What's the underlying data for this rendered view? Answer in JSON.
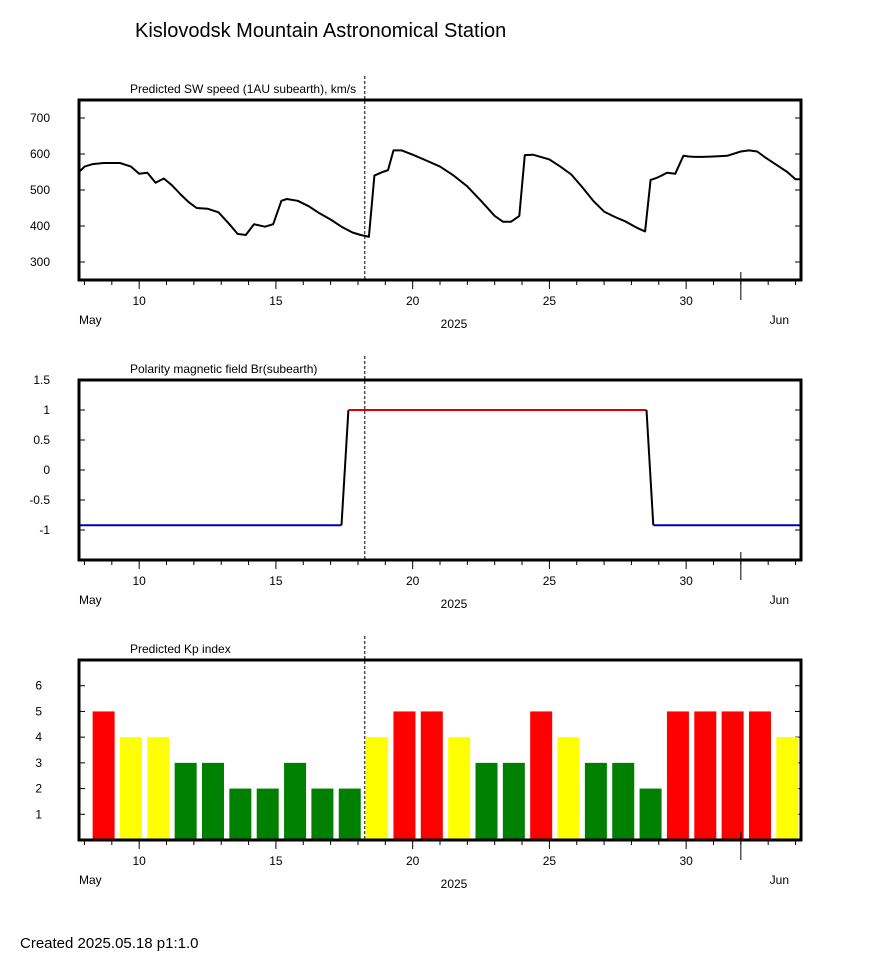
{
  "title": "Kislovodsk Mountain Astronomical Station",
  "footer": "Created  2025.05.18    p1:1.0",
  "x_axis": {
    "year_label": "2025",
    "month_start": "May",
    "month_end": "Jun",
    "ticks": [
      "10",
      "15",
      "20",
      "25",
      "30"
    ]
  },
  "chart_data": [
    {
      "type": "line",
      "title": "Predicted SW speed (1AU subearth), km/s",
      "xlabel": "2025",
      "ylim": [
        250,
        750
      ],
      "yticks": [
        "300",
        "400",
        "500",
        "600",
        "700"
      ],
      "now_marker_day": 18.25,
      "series": [
        {
          "color": "#000000",
          "x": [
            7.8,
            8.0,
            8.3,
            8.7,
            9.3,
            9.7,
            10.0,
            10.3,
            10.6,
            10.9,
            11.2,
            11.5,
            11.8,
            12.1,
            12.5,
            12.9,
            13.3,
            13.6,
            13.9,
            14.2,
            14.6,
            14.9,
            15.2,
            15.4,
            15.8,
            16.2,
            16.6,
            17.0,
            17.4,
            17.8,
            18.1,
            18.3,
            18.4,
            18.6,
            18.9,
            19.1,
            19.3,
            19.6,
            20.0,
            20.5,
            21.0,
            21.5,
            22.0,
            22.5,
            23.0,
            23.3,
            23.6,
            23.9,
            24.1,
            24.4,
            25.0,
            25.4,
            25.8,
            26.2,
            26.6,
            27.0,
            27.4,
            27.8,
            28.2,
            28.5,
            28.7,
            28.9,
            29.1,
            29.3,
            29.6,
            29.9,
            30.1,
            30.3,
            30.6,
            31.0,
            31.5,
            32.0,
            32.3,
            32.6,
            32.9,
            33.3,
            33.7,
            34.0,
            34.2
          ],
          "values": [
            550,
            565,
            572,
            575,
            575,
            565,
            545,
            548,
            520,
            532,
            513,
            489,
            467,
            450,
            448,
            438,
            405,
            378,
            375,
            405,
            398,
            405,
            470,
            475,
            470,
            455,
            435,
            418,
            398,
            382,
            375,
            372,
            370,
            540,
            550,
            555,
            610,
            610,
            598,
            582,
            565,
            540,
            510,
            470,
            428,
            412,
            412,
            428,
            597,
            598,
            585,
            565,
            543,
            508,
            470,
            440,
            425,
            412,
            395,
            385,
            528,
            533,
            540,
            548,
            545,
            595,
            593,
            592,
            592,
            593,
            595,
            607,
            610,
            607,
            590,
            570,
            550,
            530,
            530
          ]
        }
      ]
    },
    {
      "type": "line",
      "title": "Polarity magnetic field  Br(subearth)",
      "xlabel": "2025",
      "ylim": [
        -1.5,
        1.5
      ],
      "yticks": [
        "1.5",
        "1",
        "0.5",
        "0",
        "-0.5",
        "-1"
      ],
      "now_marker_day": 18.25,
      "series": [
        {
          "color": "#0000b0",
          "x": [
            7.8,
            17.4
          ],
          "values": [
            -0.92,
            -0.92
          ]
        },
        {
          "color": "#000000",
          "x": [
            17.4,
            17.65
          ],
          "values": [
            -0.92,
            1.0
          ]
        },
        {
          "color": "#dd0000",
          "x": [
            17.65,
            28.55
          ],
          "values": [
            1.0,
            1.0
          ]
        },
        {
          "color": "#000000",
          "x": [
            28.55,
            28.8
          ],
          "values": [
            1.0,
            -0.92
          ]
        },
        {
          "color": "#0000b0",
          "x": [
            28.8,
            34.2
          ],
          "values": [
            -0.92,
            -0.92
          ]
        }
      ]
    },
    {
      "type": "bar",
      "title": "Predicted Kp index",
      "xlabel": "2025",
      "ylim": [
        0,
        7
      ],
      "yticks": [
        "1",
        "2",
        "3",
        "4",
        "5",
        "6"
      ],
      "now_marker_day": 18.25,
      "x": [
        8.7,
        9.7,
        10.7,
        11.7,
        12.7,
        13.7,
        14.7,
        15.7,
        16.7,
        17.7,
        18.7,
        19.7,
        20.7,
        21.7,
        22.7,
        23.7,
        24.7,
        25.7,
        26.7,
        27.7,
        28.7,
        29.7,
        30.7,
        31.7,
        32.7,
        33.7
      ],
      "values": [
        5,
        4,
        4,
        3,
        3,
        2,
        2,
        3,
        2,
        2,
        4,
        5,
        5,
        4,
        3,
        3,
        5,
        4,
        3,
        3,
        2,
        5,
        5,
        5,
        5,
        4
      ],
      "colors": {
        "high": "#ff0000",
        "medium": "#ffff00",
        "low": "#008000"
      }
    }
  ]
}
